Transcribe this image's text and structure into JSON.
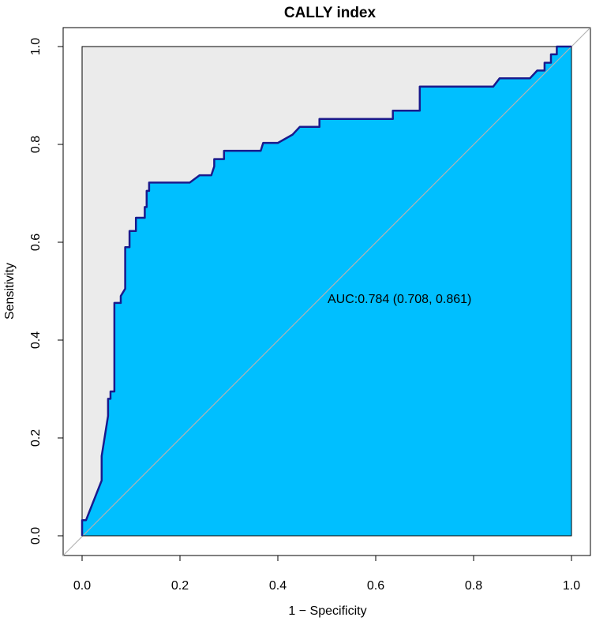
{
  "chart_data": {
    "type": "line",
    "title": "CALLY index",
    "xlabel": "1 − Specificity",
    "ylabel": "Sensitivity",
    "xlim": [
      0,
      1
    ],
    "ylim": [
      0,
      1
    ],
    "x_ticks": [
      "0.0",
      "0.2",
      "0.4",
      "0.6",
      "0.8",
      "1.0"
    ],
    "y_ticks": [
      "0.0",
      "0.2",
      "0.4",
      "0.6",
      "0.8",
      "1.0"
    ],
    "annotation": "AUC:0.784 (0.708, 0.861)",
    "grid": false,
    "reference_line": "diagonal",
    "colors": {
      "roc_fill": "#00BFFF",
      "roc_line": "#1A1A8C",
      "upper_region": "#EBEBEB",
      "diagonal": "#B3B3B3"
    },
    "series": [
      {
        "x": [
          0,
          0,
          0.008,
          0.04,
          0.04,
          0.053,
          0.053,
          0.058,
          0.058,
          0.066,
          0.066,
          0.079,
          0.079,
          0.088,
          0.088,
          0.097,
          0.097,
          0.11,
          0.11,
          0.128,
          0.128,
          0.132,
          0.132,
          0.137,
          0.137,
          0.22,
          0.24,
          0.264,
          0.27,
          0.27,
          0.29,
          0.29,
          0.365,
          0.37,
          0.4,
          0.43,
          0.445,
          0.445,
          0.485,
          0.485,
          0.635,
          0.635,
          0.69,
          0.69,
          0.84,
          0.853,
          0.91,
          0.915,
          0.93,
          0.93,
          0.945,
          0.945,
          0.958,
          0.958,
          0.97,
          0.97,
          1.0,
          1.0
        ],
        "y": [
          0,
          0.032,
          0.032,
          0.113,
          0.163,
          0.245,
          0.28,
          0.28,
          0.295,
          0.295,
          0.476,
          0.476,
          0.49,
          0.505,
          0.59,
          0.59,
          0.623,
          0.623,
          0.65,
          0.65,
          0.672,
          0.672,
          0.705,
          0.705,
          0.722,
          0.722,
          0.737,
          0.737,
          0.755,
          0.77,
          0.77,
          0.787,
          0.787,
          0.803,
          0.803,
          0.82,
          0.836,
          0.836,
          0.836,
          0.852,
          0.852,
          0.869,
          0.869,
          0.918,
          0.918,
          0.935,
          0.935,
          0.935,
          0.951,
          0.951,
          0.951,
          0.967,
          0.967,
          0.984,
          0.984,
          1.0,
          1.0,
          0
        ]
      }
    ]
  }
}
